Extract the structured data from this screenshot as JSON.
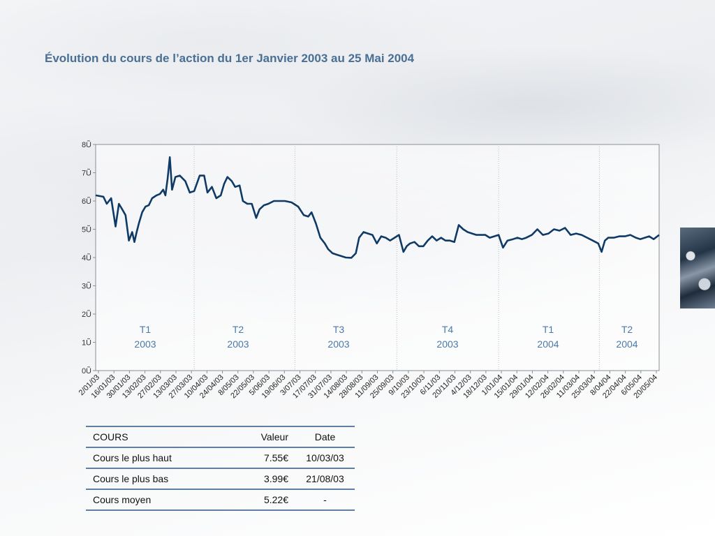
{
  "page": {
    "title": "Évolution du cours de l’action du 1er Janvier 2003 au 25 Mai 2004"
  },
  "colors": {
    "title": "#4a6f94",
    "line": "#0f3a66",
    "period_label": "#4a79a8",
    "table_rule": "#5f7ea0"
  },
  "chart_data": {
    "type": "line",
    "title": "",
    "xlabel": "",
    "ylabel": "",
    "ylim": [
      0,
      8
    ],
    "grid": false,
    "y_ticks": [
      "0Ũ",
      "1Ũ",
      "2Ũ",
      "3Ũ",
      "4Ũ",
      "5Ũ",
      "6Ũ",
      "7Ũ",
      "8Ũ"
    ],
    "x_ticks": [
      "2/01/03",
      "16/01/03",
      "30/01/03",
      "13/02/03",
      "27/02/03",
      "13/03/03",
      "27/03/03",
      "10/04/03",
      "24/04/03",
      "8/05/03",
      "22/05/03",
      "5/06/03",
      "19/06/03",
      "3/07/03",
      "17/07/03",
      "31/07/03",
      "14/08/03",
      "28/08/03",
      "11/09/03",
      "25/09/03",
      "9/10/03",
      "23/10/03",
      "6/11/03",
      "20/11/03",
      "4/12/03",
      "18/12/03",
      "1/01/04",
      "15/01/04",
      "29/01/04",
      "12/02/04",
      "26/02/04",
      "11/03/04",
      "25/03/04",
      "8/04/04",
      "22/04/04",
      "6/05/04",
      "20/05/04"
    ],
    "periods": [
      {
        "label": "T1",
        "year": "2003"
      },
      {
        "label": "T2",
        "year": "2003"
      },
      {
        "label": "T3",
        "year": "2003"
      },
      {
        "label": "T4",
        "year": "2003"
      },
      {
        "label": "T1",
        "year": "2004"
      },
      {
        "label": "T2",
        "year": "2004"
      }
    ],
    "series": [
      {
        "x": [
          "2003-01-02",
          "2003-01-09",
          "2003-01-12",
          "2003-01-16",
          "2003-01-20",
          "2003-01-23",
          "2003-01-26",
          "2003-01-29",
          "2003-02-01",
          "2003-02-04",
          "2003-02-06",
          "2003-02-08",
          "2003-02-10",
          "2003-02-13",
          "2003-02-16",
          "2003-02-19",
          "2003-02-22",
          "2003-02-26",
          "2003-03-01",
          "2003-03-04",
          "2003-03-06",
          "2003-03-08",
          "2003-03-10",
          "2003-03-12",
          "2003-03-15",
          "2003-03-19",
          "2003-03-24",
          "2003-03-28",
          "2003-04-01",
          "2003-04-06",
          "2003-04-10",
          "2003-04-13",
          "2003-04-17",
          "2003-04-21",
          "2003-04-25",
          "2003-04-28",
          "2003-05-01",
          "2003-05-05",
          "2003-05-08",
          "2003-05-12",
          "2003-05-15",
          "2003-05-19",
          "2003-05-23",
          "2003-05-27",
          "2003-05-30",
          "2003-06-03",
          "2003-06-07",
          "2003-06-12",
          "2003-06-17",
          "2003-06-22",
          "2003-06-28",
          "2003-07-04",
          "2003-07-09",
          "2003-07-13",
          "2003-07-16",
          "2003-07-20",
          "2003-07-24",
          "2003-07-28",
          "2003-07-31",
          "2003-08-04",
          "2003-08-08",
          "2003-08-12",
          "2003-08-16",
          "2003-08-21",
          "2003-08-25",
          "2003-08-28",
          "2003-09-01",
          "2003-09-05",
          "2003-09-09",
          "2003-09-13",
          "2003-09-17",
          "2003-09-21",
          "2003-09-25",
          "2003-09-29",
          "2003-10-03",
          "2003-10-07",
          "2003-10-10",
          "2003-10-13",
          "2003-10-17",
          "2003-10-21",
          "2003-10-25",
          "2003-10-29",
          "2003-11-02",
          "2003-11-06",
          "2003-11-10",
          "2003-11-14",
          "2003-11-18",
          "2003-11-22",
          "2003-11-26",
          "2003-11-30",
          "2003-12-04",
          "2003-12-08",
          "2003-12-12",
          "2003-12-16",
          "2003-12-20",
          "2003-12-24",
          "2003-12-28",
          "2004-01-01",
          "2004-01-05",
          "2004-01-09",
          "2004-01-14",
          "2004-01-18",
          "2004-01-22",
          "2004-01-26",
          "2004-01-31",
          "2004-02-05",
          "2004-02-10",
          "2004-02-15",
          "2004-02-20",
          "2004-02-25",
          "2004-03-01",
          "2004-03-06",
          "2004-03-11",
          "2004-03-16",
          "2004-03-21",
          "2004-03-26",
          "2004-03-31",
          "2004-04-03",
          "2004-04-06",
          "2004-04-09",
          "2004-04-14",
          "2004-04-19",
          "2004-04-24",
          "2004-04-29",
          "2004-05-04",
          "2004-05-08",
          "2004-05-12",
          "2004-05-16",
          "2004-05-20",
          "2004-05-25"
        ],
        "y": [
          6.2,
          6.15,
          5.9,
          6.1,
          5.1,
          5.9,
          5.7,
          5.5,
          4.6,
          4.9,
          4.55,
          4.9,
          5.2,
          5.6,
          5.8,
          5.85,
          6.1,
          6.2,
          6.25,
          6.4,
          6.2,
          6.8,
          7.55,
          6.4,
          6.85,
          6.9,
          6.7,
          6.3,
          6.35,
          6.9,
          6.9,
          6.3,
          6.5,
          6.1,
          6.2,
          6.6,
          6.85,
          6.7,
          6.5,
          6.55,
          6.0,
          5.9,
          5.9,
          5.4,
          5.7,
          5.85,
          5.9,
          6.0,
          6.0,
          6.0,
          5.95,
          5.8,
          5.5,
          5.45,
          5.6,
          5.2,
          4.7,
          4.5,
          4.3,
          4.15,
          4.1,
          4.05,
          4.0,
          3.99,
          4.15,
          4.7,
          4.9,
          4.85,
          4.8,
          4.5,
          4.75,
          4.7,
          4.6,
          4.7,
          4.8,
          4.2,
          4.4,
          4.5,
          4.55,
          4.4,
          4.4,
          4.6,
          4.75,
          4.6,
          4.7,
          4.6,
          4.6,
          4.55,
          5.15,
          5.0,
          4.9,
          4.85,
          4.8,
          4.8,
          4.8,
          4.7,
          4.75,
          4.8,
          4.35,
          4.6,
          4.65,
          4.7,
          4.65,
          4.7,
          4.8,
          5.0,
          4.8,
          4.85,
          5.0,
          4.95,
          5.05,
          4.8,
          4.85,
          4.8,
          4.7,
          4.6,
          4.5,
          4.2,
          4.6,
          4.7,
          4.7,
          4.75,
          4.75,
          4.8,
          4.7,
          4.65,
          4.7,
          4.75,
          4.65,
          4.8
        ]
      }
    ]
  },
  "table": {
    "headers": [
      "COURS",
      "Valeur",
      "Date"
    ],
    "rows": [
      [
        "Cours le plus haut",
        "7.55€",
        "10/03/03"
      ],
      [
        "Cours le plus bas",
        "3.99€",
        "21/08/03"
      ],
      [
        "Cours moyen",
        "5.22€",
        "-"
      ]
    ]
  },
  "decoration": {
    "thumbnail_icon": "engine-photo-icon"
  }
}
